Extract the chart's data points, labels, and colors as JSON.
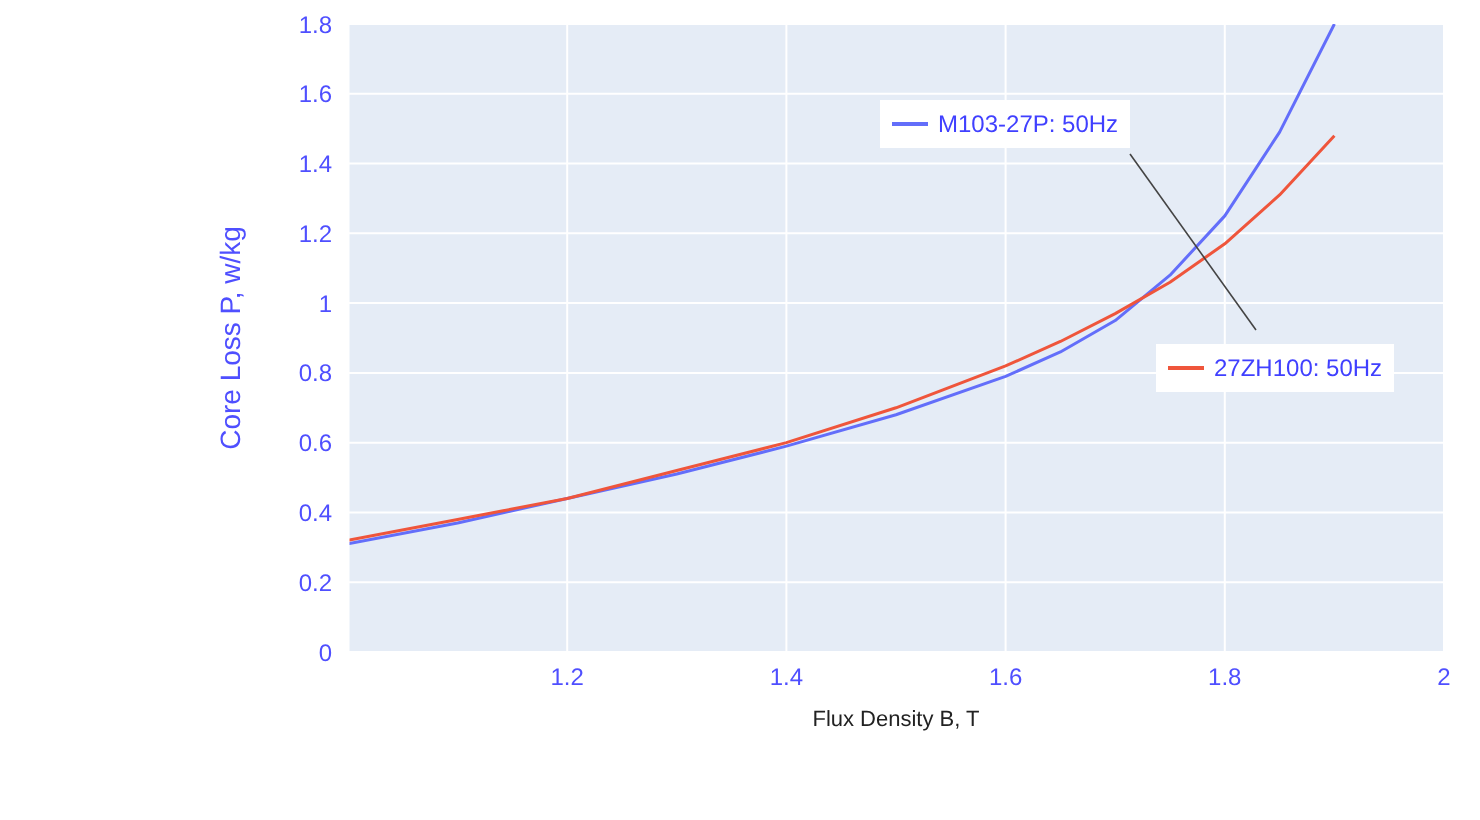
{
  "chart_data": {
    "type": "line",
    "xlabel": "Flux Density B, T",
    "ylabel": "Core Loss P, w/kg",
    "xlim": [
      1,
      2
    ],
    "xticks": [
      1.2,
      1.4,
      1.6,
      1.8,
      2
    ],
    "legend": "right",
    "ylim": [
      0,
      1.8
    ],
    "yticks": [
      0,
      0.2,
      0.4,
      0.6,
      0.8,
      1,
      1.2,
      1.4,
      1.6,
      1.8
    ],
    "grid": true,
    "x": [
      1.0,
      1.1,
      1.2,
      1.3,
      1.4,
      1.5,
      1.6,
      1.65,
      1.7,
      1.75,
      1.8,
      1.85,
      1.9
    ],
    "series": [
      {
        "name": "M103-27P: 50Hz",
        "color": "#636efa",
        "values": [
          0.31,
          0.37,
          0.44,
          0.51,
          0.59,
          0.68,
          0.79,
          0.86,
          0.95,
          1.08,
          1.25,
          1.49,
          1.8
        ]
      },
      {
        "name": "27ZH100: 50Hz",
        "color": "#ef553b",
        "values": [
          0.32,
          0.38,
          0.44,
          0.52,
          0.6,
          0.7,
          0.82,
          0.89,
          0.97,
          1.06,
          1.17,
          1.31,
          1.48
        ]
      }
    ]
  }
}
